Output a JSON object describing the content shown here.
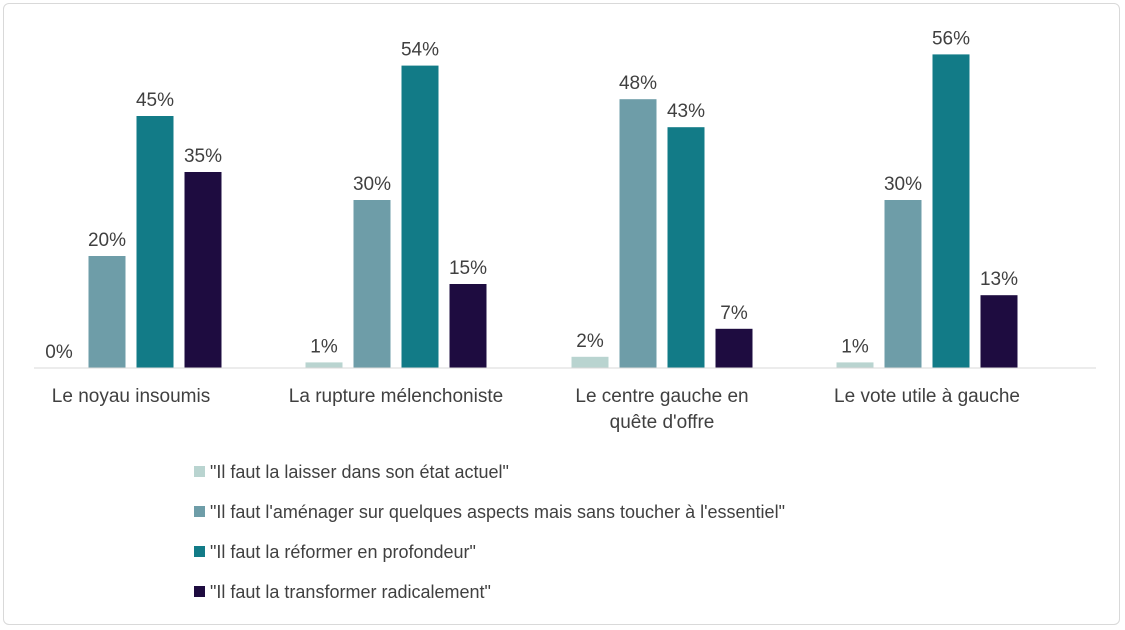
{
  "chart_data": {
    "type": "bar",
    "title": "",
    "xlabel": "",
    "ylabel": "",
    "ylim": [
      0,
      60
    ],
    "grid": false,
    "legend_position": "bottom",
    "categories": [
      [
        "Le noyau insoumis"
      ],
      [
        "La rupture mélenchoniste"
      ],
      [
        "Le centre gauche en",
        "quête d'offre"
      ],
      [
        "Le vote utile à gauche"
      ]
    ],
    "series": [
      {
        "name": "\"Il faut la laisser dans son état actuel\"",
        "color": "#b9d4d0",
        "values": [
          0,
          1,
          2,
          1
        ],
        "labels": [
          "0%",
          "1%",
          "2%",
          "1%"
        ]
      },
      {
        "name": "\"Il faut l'aménager sur quelques aspects mais sans toucher à l'essentiel\"",
        "color": "#6e9da8",
        "values": [
          20,
          30,
          48,
          30
        ],
        "labels": [
          "20%",
          "30%",
          "48%",
          "30%"
        ]
      },
      {
        "name": "\"Il faut la réformer en profondeur\"",
        "color": "#127b87",
        "values": [
          45,
          54,
          43,
          56
        ],
        "labels": [
          "45%",
          "54%",
          "43%",
          "56%"
        ]
      },
      {
        "name": "\"Il faut la transformer radicalement\"",
        "color": "#1e0c40",
        "values": [
          35,
          15,
          7,
          13
        ],
        "labels": [
          "35%",
          "15%",
          "7%",
          "13%"
        ]
      }
    ]
  }
}
